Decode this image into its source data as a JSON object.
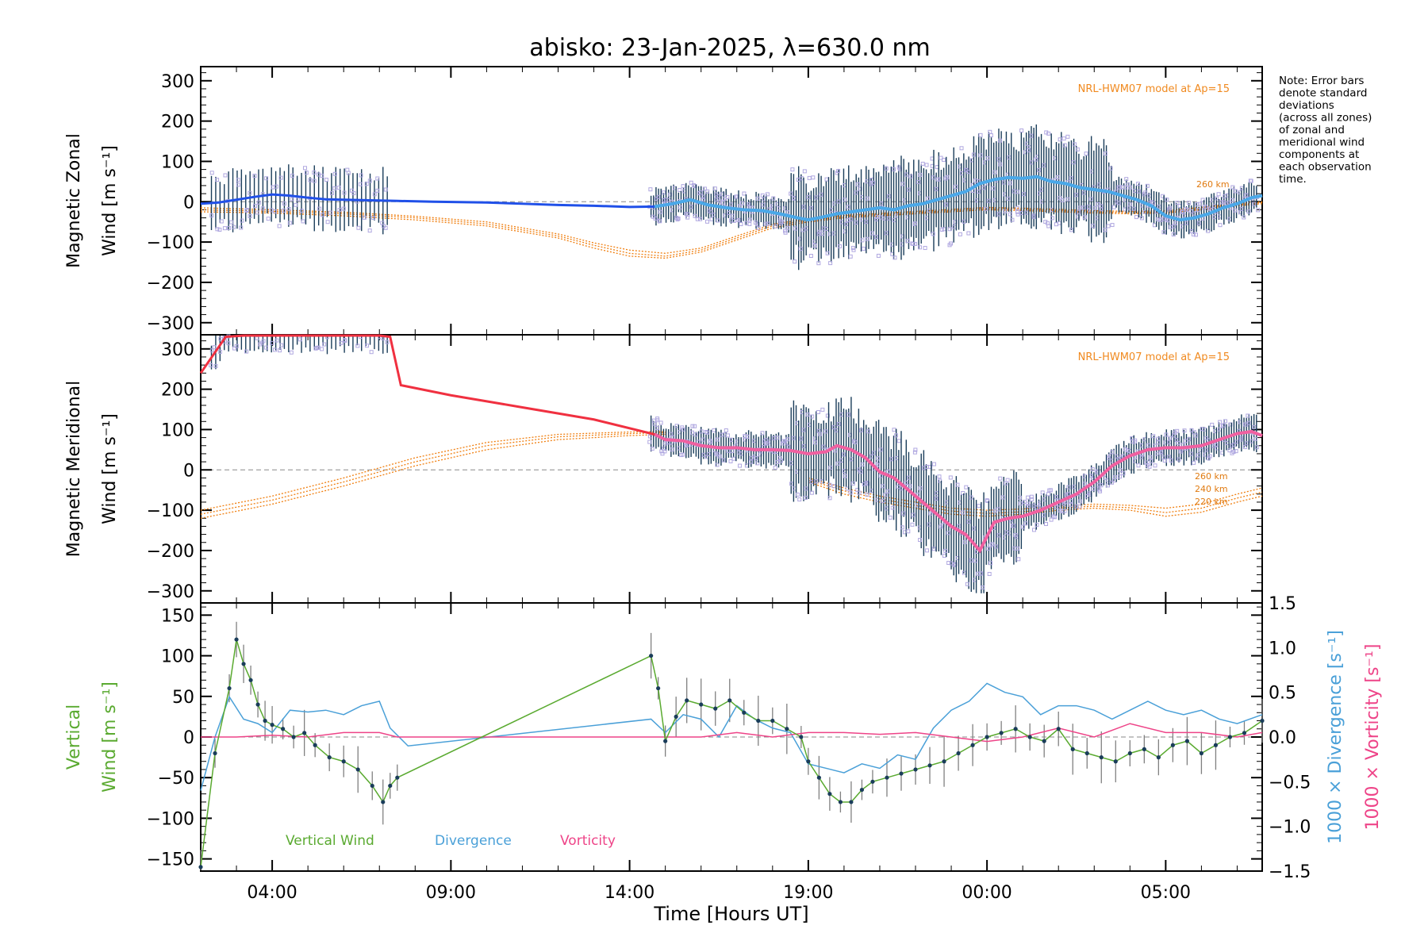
{
  "title": "abisko: 23-Jan-2025, λ=630.0 nm",
  "note_lines": [
    "Note: Error bars",
    "denote standard",
    "deviations",
    "(across all zones)",
    "of zonal and",
    "meridional wind",
    "components at",
    "each observation",
    "time."
  ],
  "xlabel": "Time [Hours UT]",
  "colors": {
    "zonal": "#2050e8",
    "zonal_fit": "#4aa8e8",
    "meridional": "#f03040",
    "meridional_fit": "#f060a0",
    "model": "#f07f10",
    "errbar": "#1a3d5a",
    "scatter": "#b0a8e0",
    "vertical": "#5aaa30",
    "divergence": "#4aa0d8",
    "vorticity": "#ee4488",
    "zero_line": "#888888"
  },
  "chart_data": [
    {
      "type": "line",
      "panel": "zonal",
      "ylabel_line1": "Magnetic Zonal",
      "ylabel_line2": "Wind [m s⁻¹]",
      "ylim": [
        -330,
        335
      ],
      "yticks": [
        -300,
        -200,
        -100,
        0,
        100,
        200,
        300
      ],
      "xlim": [
        2.0,
        31.7
      ],
      "xtick_values": [
        4,
        9,
        14,
        19,
        24,
        29
      ],
      "xtick_labels": [
        "04:00",
        "09:00",
        "14:00",
        "19:00",
        "00:00",
        "05:00"
      ],
      "model_label": "NRL-HWM07 model at Ap=15",
      "model_alt_labels": [
        "260 km"
      ],
      "series": [
        {
          "name": "Magnetic Zonal Wind",
          "x": [
            2.0,
            2.5,
            3.0,
            3.5,
            4.0,
            4.5,
            5.0,
            5.5,
            6.0,
            6.5,
            7.0,
            7.5,
            8.5,
            10,
            11,
            12,
            13,
            14,
            14.7,
            15.2,
            15.7,
            16.2,
            16.7,
            17.2,
            17.7,
            18.2,
            18.7,
            19.0,
            19.4,
            19.8,
            20.2,
            20.6,
            21.0,
            21.4,
            21.8,
            22.2,
            22.6,
            23.0,
            23.4,
            23.8,
            24.2,
            24.6,
            25.0,
            25.4,
            25.8,
            26.2,
            26.6,
            27.0,
            27.4,
            27.8,
            28.2,
            28.6,
            29.0,
            29.4,
            29.8,
            30.2,
            30.6,
            31.0,
            31.4,
            31.7
          ],
          "values": [
            -5,
            -2,
            5,
            12,
            18,
            15,
            10,
            6,
            5,
            4,
            3,
            2,
            0,
            -2,
            -5,
            -8,
            -10,
            -13,
            -12,
            -5,
            5,
            -8,
            -15,
            -20,
            -22,
            -30,
            -40,
            -45,
            -38,
            -30,
            -25,
            -20,
            -15,
            -20,
            -10,
            -5,
            5,
            15,
            25,
            45,
            55,
            60,
            58,
            62,
            50,
            45,
            35,
            30,
            25,
            15,
            5,
            -10,
            -35,
            -45,
            -40,
            -30,
            -15,
            -5,
            10,
            15
          ]
        },
        {
          "name": "Model 220 km",
          "x": [
            2,
            4,
            6,
            8,
            10,
            12,
            13,
            14,
            15,
            16,
            17,
            18,
            19,
            20,
            21,
            22,
            23,
            24,
            25,
            26,
            27,
            28,
            29,
            30,
            31,
            31.7
          ],
          "values": [
            -25,
            -28,
            -35,
            -45,
            -60,
            -90,
            -115,
            -135,
            -140,
            -125,
            -95,
            -65,
            -50,
            -40,
            -35,
            -30,
            -25,
            -20,
            -22,
            -25,
            -28,
            -30,
            -28,
            -20,
            -10,
            -5
          ]
        },
        {
          "name": "Model 240 km",
          "x": [
            2,
            4,
            6,
            8,
            10,
            12,
            13,
            14,
            15,
            16,
            17,
            18,
            19,
            20,
            21,
            22,
            23,
            24,
            25,
            26,
            27,
            28,
            29,
            30,
            31,
            31.7
          ],
          "values": [
            -20,
            -24,
            -30,
            -40,
            -55,
            -85,
            -108,
            -128,
            -135,
            -120,
            -90,
            -60,
            -46,
            -37,
            -32,
            -27,
            -22,
            -17,
            -19,
            -22,
            -25,
            -27,
            -25,
            -17,
            -7,
            -2
          ]
        },
        {
          "name": "Model 260 km",
          "x": [
            2,
            4,
            6,
            8,
            10,
            12,
            13,
            14,
            15,
            16,
            17,
            18,
            19,
            20,
            21,
            22,
            23,
            24,
            25,
            26,
            27,
            28,
            29,
            30,
            31,
            31.7
          ],
          "values": [
            -15,
            -20,
            -26,
            -36,
            -50,
            -80,
            -102,
            -120,
            -128,
            -115,
            -85,
            -56,
            -42,
            -34,
            -29,
            -24,
            -19,
            -14,
            -16,
            -19,
            -22,
            -24,
            -22,
            -14,
            -4,
            0
          ]
        }
      ]
    },
    {
      "type": "line",
      "panel": "meridional",
      "ylabel_line1": "Magnetic Meridional",
      "ylabel_line2": "Wind [m s⁻¹]",
      "ylim": [
        -330,
        335
      ],
      "yticks": [
        -300,
        -200,
        -100,
        0,
        100,
        200,
        300
      ],
      "xlim": [
        2.0,
        31.7
      ],
      "model_label": "NRL-HWM07 model at Ap=15",
      "model_alt_labels": [
        "260 km",
        "240 km",
        "220 km"
      ],
      "series": [
        {
          "name": "Magnetic Meridional Wind",
          "x": [
            2.0,
            2.7,
            3.2,
            4.0,
            5.0,
            6.0,
            7.0,
            7.3,
            7.6,
            9,
            11,
            13,
            14.7,
            15.0,
            15.5,
            16,
            16.5,
            17,
            17.5,
            18,
            18.5,
            19,
            19.5,
            19.8,
            20.2,
            20.6,
            21,
            21.4,
            21.8,
            22.2,
            22.6,
            23,
            23.4,
            23.8,
            24.2,
            24.6,
            25,
            25.5,
            26,
            26.5,
            27,
            27.5,
            28,
            28.5,
            29,
            29.5,
            30,
            30.5,
            31,
            31.4,
            31.7
          ],
          "values": [
            240,
            330,
            335,
            335,
            335,
            335,
            335,
            330,
            210,
            185,
            155,
            125,
            88,
            75,
            72,
            60,
            55,
            55,
            50,
            50,
            48,
            40,
            45,
            60,
            50,
            30,
            -5,
            -20,
            -50,
            -80,
            -110,
            -140,
            -160,
            -200,
            -130,
            -120,
            -115,
            -100,
            -80,
            -60,
            -30,
            10,
            35,
            50,
            55,
            55,
            60,
            75,
            90,
            95,
            85
          ]
        },
        {
          "name": "Model 220 km",
          "x": [
            2,
            4,
            6,
            8,
            10,
            12,
            14,
            15
          ],
          "values": [
            -120,
            -85,
            -40,
            10,
            50,
            75,
            85,
            88
          ]
        },
        {
          "name": "Model 240 km",
          "x": [
            2,
            4,
            6,
            8,
            10,
            12,
            14,
            15
          ],
          "values": [
            -110,
            -75,
            -30,
            20,
            60,
            82,
            90,
            92
          ]
        },
        {
          "name": "Model 260 km",
          "x": [
            2,
            4,
            6,
            8,
            10,
            12,
            14,
            15
          ],
          "values": [
            -100,
            -65,
            -20,
            30,
            68,
            88,
            94,
            95
          ]
        },
        {
          "name": "Model 220 km (night)",
          "x": [
            19,
            20,
            21,
            22,
            23,
            24,
            25,
            26,
            27,
            28,
            29,
            30,
            31,
            31.7
          ],
          "values": [
            -30,
            -60,
            -80,
            -95,
            -110,
            -115,
            -110,
            -100,
            -95,
            -100,
            -115,
            -105,
            -80,
            -65
          ]
        },
        {
          "name": "Model 240 km (night)",
          "x": [
            19,
            20,
            21,
            22,
            23,
            24,
            25,
            26,
            27,
            28,
            29,
            30,
            31,
            31.7
          ],
          "values": [
            -25,
            -52,
            -72,
            -88,
            -102,
            -108,
            -104,
            -95,
            -90,
            -94,
            -106,
            -95,
            -70,
            -55
          ]
        },
        {
          "name": "Model 260 km (night)",
          "x": [
            19,
            20,
            21,
            22,
            23,
            24,
            25,
            26,
            27,
            28,
            29,
            30,
            31,
            31.7
          ],
          "values": [
            -20,
            -45,
            -65,
            -80,
            -95,
            -100,
            -97,
            -90,
            -85,
            -88,
            -95,
            -85,
            -60,
            -45
          ]
        }
      ]
    },
    {
      "type": "line",
      "panel": "vertical",
      "ylabel_line1": "Vertical",
      "ylabel_line2": "Wind [m s⁻¹]",
      "ylim": [
        -165,
        165
      ],
      "yticks": [
        -150,
        -100,
        -50,
        0,
        50,
        100,
        150
      ],
      "y2lim": [
        -1.5,
        1.5
      ],
      "y2ticks": [
        -1.5,
        -1.0,
        -0.5,
        0.0,
        0.5,
        1.0,
        1.5
      ],
      "y2tick_labels": [
        "−1.5",
        "−1.0",
        "−0.5",
        "0.0",
        "0.5",
        "1.0",
        "1.5"
      ],
      "y2label_1": "1000 × Divergence [s⁻¹]",
      "y2label_2": "1000 × Vorticity [s⁻¹]",
      "legend": [
        "Vertical Wind",
        "Divergence",
        "Vorticity"
      ],
      "series": [
        {
          "name": "Vertical Wind",
          "x": [
            2.0,
            2.4,
            2.8,
            3.0,
            3.2,
            3.4,
            3.6,
            3.8,
            4.0,
            4.3,
            4.6,
            4.9,
            5.2,
            5.6,
            6.0,
            6.4,
            6.8,
            7.1,
            7.3,
            7.5,
            14.6,
            14.8,
            15.0,
            15.3,
            15.6,
            16.0,
            16.4,
            16.8,
            17.2,
            17.6,
            18.0,
            18.4,
            18.8,
            19.0,
            19.3,
            19.6,
            19.9,
            20.2,
            20.5,
            20.8,
            21.2,
            21.6,
            22.0,
            22.4,
            22.8,
            23.2,
            23.6,
            24.0,
            24.4,
            24.8,
            25.2,
            25.6,
            26.0,
            26.4,
            26.8,
            27.2,
            27.6,
            28.0,
            28.4,
            28.8,
            29.2,
            29.6,
            30.0,
            30.4,
            30.8,
            31.2,
            31.7
          ],
          "values": [
            -160,
            -20,
            60,
            120,
            90,
            70,
            40,
            20,
            15,
            10,
            0,
            5,
            -10,
            -25,
            -30,
            -40,
            -60,
            -80,
            -60,
            -50,
            100,
            60,
            -5,
            25,
            45,
            40,
            35,
            45,
            30,
            20,
            20,
            10,
            0,
            -30,
            -50,
            -70,
            -80,
            -80,
            -65,
            -55,
            -50,
            -45,
            -40,
            -35,
            -30,
            -20,
            -10,
            0,
            5,
            10,
            0,
            -5,
            10,
            -15,
            -20,
            -25,
            -30,
            -20,
            -15,
            -25,
            -10,
            -5,
            -20,
            -10,
            0,
            5,
            20
          ]
        },
        {
          "name": "Divergence",
          "x": [
            2.0,
            2.4,
            2.8,
            3.2,
            3.6,
            4.0,
            4.5,
            5.0,
            5.5,
            6.0,
            6.5,
            7.0,
            7.3,
            7.8,
            14.6,
            15.0,
            15.5,
            16.0,
            16.5,
            17.0,
            17.5,
            18.0,
            18.5,
            19.0,
            19.5,
            20.0,
            20.5,
            21.0,
            21.5,
            22.0,
            22.5,
            23.0,
            23.5,
            24.0,
            24.5,
            25.0,
            25.5,
            26.0,
            26.5,
            27.0,
            27.5,
            28.0,
            28.5,
            29.0,
            29.5,
            30.0,
            30.5,
            31.0,
            31.7
          ],
          "values": [
            -0.6,
            0.0,
            0.45,
            0.2,
            0.15,
            0.05,
            0.3,
            0.28,
            0.3,
            0.25,
            0.35,
            0.4,
            0.1,
            -0.1,
            0.2,
            0.05,
            0.25,
            0.2,
            0.0,
            0.35,
            0.2,
            0.1,
            0.05,
            -0.3,
            -0.35,
            -0.4,
            -0.3,
            -0.35,
            -0.2,
            -0.25,
            0.1,
            0.3,
            0.4,
            0.6,
            0.5,
            0.45,
            0.25,
            0.35,
            0.35,
            0.3,
            0.2,
            0.3,
            0.4,
            0.3,
            0.25,
            0.3,
            0.2,
            0.15,
            0.25
          ]
        },
        {
          "name": "Vorticity",
          "x": [
            2.0,
            3.0,
            4.0,
            5.0,
            6.0,
            7.0,
            7.5,
            8.0,
            14.6,
            15.0,
            16.0,
            17.0,
            18.0,
            19.0,
            20.0,
            21.0,
            22.0,
            23.0,
            24.0,
            25.0,
            26.0,
            27.0,
            28.0,
            29.0,
            30.0,
            31.0,
            31.7
          ],
          "values": [
            0.0,
            0.0,
            0.02,
            0.0,
            0.05,
            0.05,
            0.0,
            0.0,
            0.0,
            0.0,
            0.0,
            0.05,
            0.0,
            0.05,
            0.05,
            0.03,
            0.05,
            0.0,
            -0.05,
            0.0,
            0.1,
            0.0,
            0.15,
            0.05,
            0.05,
            0.0,
            0.05
          ]
        }
      ]
    }
  ]
}
